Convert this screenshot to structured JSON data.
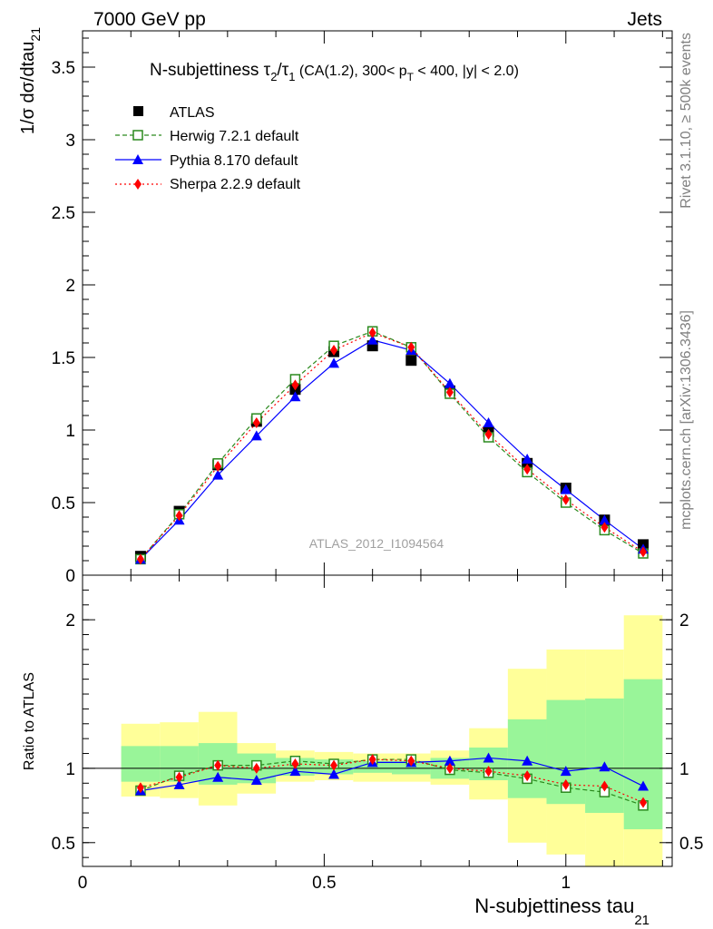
{
  "header": {
    "energy_label": "7000 GeV pp",
    "category_label": "Jets"
  },
  "side_labels": {
    "rivet": "Rivet 3.1.10, ≥ 500k events",
    "mcplots": "mcplots.cern.ch [arXiv:1306.3436]"
  },
  "analysis_tag": "ATLAS_2012_I1094564",
  "colors": {
    "atlas": "#000000",
    "herwig": "#2b8a1e",
    "pythia": "#0000ff",
    "sherpa": "#ff0000",
    "band_outer": "#ffff99",
    "band_inner": "#99f599"
  },
  "chart_data": [
    {
      "type": "line",
      "title_parts": {
        "main": "N-subjettiness ",
        "tau2": "τ",
        "tau2_sub": "2",
        "slash": "/",
        "tau1": "τ",
        "tau1_sub": "1",
        "selection_a": " (CA(1.2), 300< p",
        "selection_sub": "T",
        "selection_b": " < 400, |y| < 2.0)"
      },
      "ylabel": "1/σ dσ/dtau",
      "ylabel_sub": "21",
      "xlim": [
        0,
        1.22
      ],
      "ylim": [
        0,
        3.75
      ],
      "x": [
        0.12,
        0.2,
        0.28,
        0.36,
        0.44,
        0.52,
        0.6,
        0.68,
        0.76,
        0.84,
        0.92,
        1.0,
        1.08,
        1.16
      ],
      "y_ticks": [
        "0",
        "0.5",
        "1",
        "1.5",
        "2",
        "2.5",
        "3",
        "3.5"
      ],
      "legend_position": "top-left",
      "series": [
        {
          "name": "ATLAS",
          "key": "atlas",
          "marker": "square",
          "values": [
            0.13,
            0.44,
            0.76,
            1.06,
            1.28,
            1.54,
            1.58,
            1.48,
            1.27,
            0.99,
            0.77,
            0.6,
            0.38,
            0.21
          ]
        },
        {
          "name": "Herwig 7.2.1 default",
          "key": "herwig",
          "marker": "open-square",
          "dash": "5,3",
          "values": [
            0.11,
            0.42,
            0.77,
            1.08,
            1.35,
            1.58,
            1.68,
            1.57,
            1.25,
            0.95,
            0.71,
            0.5,
            0.31,
            0.15
          ]
        },
        {
          "name": "Pythia 8.170 default",
          "key": "pythia",
          "marker": "triangle",
          "dash": "",
          "values": [
            0.11,
            0.38,
            0.69,
            0.96,
            1.23,
            1.46,
            1.62,
            1.55,
            1.32,
            1.05,
            0.8,
            0.59,
            0.38,
            0.18
          ]
        },
        {
          "name": "Sherpa 2.2.9 default",
          "key": "sherpa",
          "marker": "diamond",
          "dash": "2,3",
          "values": [
            0.11,
            0.41,
            0.75,
            1.05,
            1.31,
            1.55,
            1.67,
            1.57,
            1.26,
            0.97,
            0.73,
            0.52,
            0.33,
            0.16
          ]
        }
      ]
    },
    {
      "type": "line",
      "ylabel": "Ratio to ATLAS",
      "xlabel": "N-subjettiness tau",
      "xlabel_sub": "21",
      "xlim": [
        0,
        1.22
      ],
      "ylim": [
        0.34,
        2.3
      ],
      "x_ticks": [
        "0",
        "0.5",
        "1"
      ],
      "y_ticks": [
        "0.5",
        "1",
        "2"
      ],
      "x": [
        0.12,
        0.2,
        0.28,
        0.36,
        0.44,
        0.52,
        0.6,
        0.68,
        0.76,
        0.84,
        0.92,
        1.0,
        1.08,
        1.16
      ],
      "bin_edges": [
        0.08,
        0.16,
        0.24,
        0.32,
        0.4,
        0.48,
        0.56,
        0.64,
        0.72,
        0.8,
        0.88,
        0.96,
        1.04,
        1.12,
        1.2
      ],
      "band_inner": {
        "low": [
          0.91,
          0.91,
          0.89,
          0.9,
          0.95,
          0.96,
          0.97,
          0.96,
          0.93,
          0.92,
          0.8,
          0.76,
          0.7,
          0.59
        ],
        "high": [
          1.15,
          1.15,
          1.17,
          1.1,
          1.07,
          1.06,
          1.05,
          1.05,
          1.07,
          1.14,
          1.33,
          1.46,
          1.47,
          1.6
        ]
      },
      "band_outer": {
        "low": [
          0.81,
          0.8,
          0.75,
          0.83,
          0.91,
          0.92,
          0.91,
          0.91,
          0.89,
          0.79,
          0.5,
          0.42,
          0.34,
          0.34
        ],
        "high": [
          1.3,
          1.31,
          1.38,
          1.17,
          1.12,
          1.11,
          1.1,
          1.1,
          1.12,
          1.27,
          1.67,
          1.8,
          1.8,
          2.03
        ]
      },
      "series": [
        {
          "name": "Herwig 7.2.1 default",
          "key": "herwig",
          "marker": "open-square",
          "dash": "5,3",
          "values": [
            0.85,
            0.95,
            1.02,
            1.02,
            1.05,
            1.03,
            1.06,
            1.06,
            0.99,
            0.97,
            0.93,
            0.87,
            0.84,
            0.75
          ]
        },
        {
          "name": "Pythia 8.170 default",
          "key": "pythia",
          "marker": "triangle",
          "dash": "",
          "values": [
            0.85,
            0.89,
            0.94,
            0.92,
            0.98,
            0.96,
            1.04,
            1.04,
            1.05,
            1.07,
            1.05,
            0.98,
            1.01,
            0.88
          ]
        },
        {
          "name": "Sherpa 2.2.9 default",
          "key": "sherpa",
          "marker": "diamond",
          "dash": "2,3",
          "values": [
            0.87,
            0.94,
            1.02,
            1.0,
            1.03,
            1.02,
            1.06,
            1.05,
            1.0,
            0.98,
            0.95,
            0.89,
            0.88,
            0.77
          ]
        }
      ]
    }
  ]
}
